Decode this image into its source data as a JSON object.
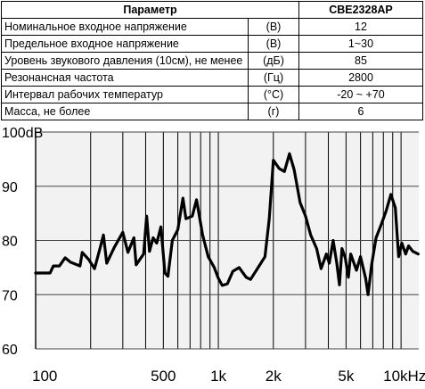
{
  "table": {
    "headers": {
      "param": "Параметр",
      "model": "CBE2328AP"
    },
    "rows": [
      {
        "name": "Номинальное входное напряжение",
        "unit": "(В)",
        "value": "12"
      },
      {
        "name": "Предельное входное напряжение",
        "unit": "(В)",
        "value": "1~30"
      },
      {
        "name": "Уровень звукового давления (10см), не менее",
        "unit": "(дБ)",
        "value": "85"
      },
      {
        "name": "Резонансная частота",
        "unit": "(Гц)",
        "value": "2800"
      },
      {
        "name": "Интервал рабочих температур",
        "unit": "(°С)",
        "value": "-20 ~ +70"
      },
      {
        "name": "Масса, не более",
        "unit": "(г)",
        "value": "6"
      }
    ]
  },
  "chart_data": {
    "type": "line",
    "xscale": "log",
    "yunit_label": "dB",
    "xlim": [
      100,
      12500
    ],
    "ylim": [
      60,
      100
    ],
    "y_ticks": [
      {
        "value": 100,
        "label": "100dB"
      },
      {
        "value": 90,
        "label": "90"
      },
      {
        "value": 80,
        "label": "80"
      },
      {
        "value": 70,
        "label": "70"
      },
      {
        "value": 60,
        "label": "60"
      }
    ],
    "x_ticks": [
      {
        "value": 100,
        "label": "100"
      },
      {
        "value": 500,
        "label": "500"
      },
      {
        "value": 1000,
        "label": "1k"
      },
      {
        "value": 2000,
        "label": "2k"
      },
      {
        "value": 5000,
        "label": "5k"
      },
      {
        "value": 10000,
        "label": "10kHz"
      }
    ],
    "grid": true,
    "series": [
      {
        "color": "#000000",
        "points": [
          [
            100,
            74
          ],
          [
            120,
            74
          ],
          [
            125,
            75.3
          ],
          [
            135,
            75.3
          ],
          [
            145,
            76.8
          ],
          [
            155,
            76
          ],
          [
            175,
            75.3
          ],
          [
            180,
            77.8
          ],
          [
            195,
            76.5
          ],
          [
            210,
            74.8
          ],
          [
            225,
            78.5
          ],
          [
            235,
            81
          ],
          [
            245,
            75.8
          ],
          [
            270,
            78.8
          ],
          [
            300,
            81.5
          ],
          [
            320,
            77.8
          ],
          [
            345,
            80.5
          ],
          [
            355,
            75.5
          ],
          [
            390,
            77.5
          ],
          [
            405,
            84.5
          ],
          [
            420,
            78
          ],
          [
            440,
            80.5
          ],
          [
            460,
            79.5
          ],
          [
            485,
            82.5
          ],
          [
            510,
            74
          ],
          [
            530,
            73.4
          ],
          [
            560,
            80
          ],
          [
            600,
            82
          ],
          [
            640,
            87.8
          ],
          [
            665,
            84
          ],
          [
            720,
            84.5
          ],
          [
            760,
            87.5
          ],
          [
            820,
            81
          ],
          [
            880,
            77
          ],
          [
            950,
            75
          ],
          [
            1000,
            73
          ],
          [
            1050,
            71.7
          ],
          [
            1120,
            72
          ],
          [
            1200,
            74.3
          ],
          [
            1300,
            75
          ],
          [
            1420,
            73.2
          ],
          [
            1500,
            72.8
          ],
          [
            1650,
            75
          ],
          [
            1800,
            77
          ],
          [
            1900,
            84
          ],
          [
            2000,
            94.8
          ],
          [
            2150,
            93.3
          ],
          [
            2300,
            92.7
          ],
          [
            2450,
            96
          ],
          [
            2600,
            93
          ],
          [
            2800,
            87
          ],
          [
            3000,
            84.5
          ],
          [
            3200,
            81
          ],
          [
            3450,
            78.5
          ],
          [
            3650,
            74.8
          ],
          [
            3900,
            77.5
          ],
          [
            4050,
            75.8
          ],
          [
            4250,
            80
          ],
          [
            4450,
            75.8
          ],
          [
            4600,
            71.8
          ],
          [
            4750,
            78.5
          ],
          [
            4950,
            76.8
          ],
          [
            5150,
            73.2
          ],
          [
            5300,
            77.5
          ],
          [
            5700,
            74.5
          ],
          [
            6000,
            77
          ],
          [
            6400,
            73
          ],
          [
            6600,
            70
          ],
          [
            6900,
            75.5
          ],
          [
            7300,
            80.5
          ],
          [
            7800,
            83
          ],
          [
            8300,
            85.5
          ],
          [
            8800,
            88.5
          ],
          [
            9300,
            86
          ],
          [
            9700,
            77
          ],
          [
            10100,
            79.5
          ],
          [
            10600,
            77.5
          ],
          [
            11000,
            79
          ],
          [
            11600,
            78
          ],
          [
            12400,
            77.5
          ]
        ]
      }
    ]
  }
}
